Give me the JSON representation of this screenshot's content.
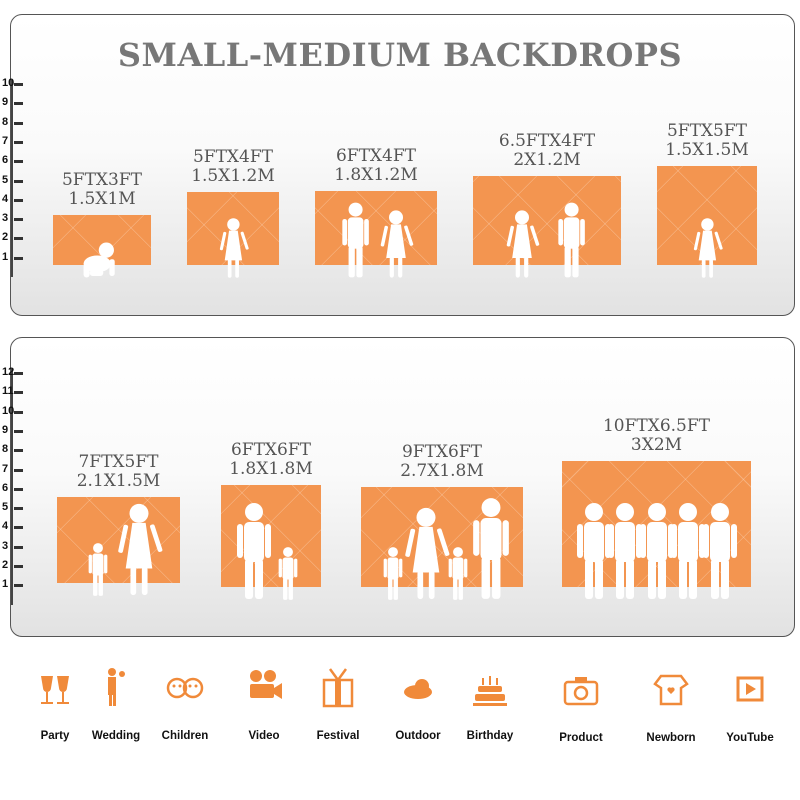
{
  "title": "SMALL-MEDIUM BACKDROPS",
  "accent_color": "#f39550",
  "top_panel": {
    "scale_ticks": [
      "10",
      "9",
      "8",
      "7",
      "6",
      "5",
      "4",
      "3",
      "2",
      "1"
    ],
    "backdrops": [
      {
        "ft": "5FTX3FT",
        "m": "1.5X1M",
        "silhouettes": [
          "crawling-baby"
        ]
      },
      {
        "ft": "5FTX4FT",
        "m": "1.5X1.2M",
        "silhouettes": [
          "girl"
        ]
      },
      {
        "ft": "6FTX4FT",
        "m": "1.8X1.2M",
        "silhouettes": [
          "boy",
          "girl"
        ]
      },
      {
        "ft": "6.5FTX4FT",
        "m": "2X1.2M",
        "silhouettes": [
          "girl",
          "boy"
        ]
      },
      {
        "ft": "5FTX5FT",
        "m": "1.5X1.5M",
        "silhouettes": [
          "girl"
        ]
      }
    ]
  },
  "bottom_panel": {
    "scale_ticks": [
      "12",
      "11",
      "10",
      "9",
      "8",
      "7",
      "6",
      "5",
      "4",
      "3",
      "2",
      "1"
    ],
    "backdrops": [
      {
        "ft": "7FTX5FT",
        "m": "2.1X1.5M",
        "silhouettes": [
          "child",
          "woman"
        ]
      },
      {
        "ft": "6FTX6FT",
        "m": "1.8X1.8M",
        "silhouettes": [
          "woman-holding-child",
          "child"
        ]
      },
      {
        "ft": "9FTX6FT",
        "m": "2.7X1.8M",
        "silhouettes": [
          "child",
          "woman",
          "child",
          "man"
        ]
      },
      {
        "ft": "10FTX6.5FT",
        "m": "3X2M",
        "silhouettes": [
          "adult",
          "adult",
          "adult",
          "adult",
          "adult"
        ]
      }
    ]
  },
  "uses": [
    {
      "label": "Party",
      "icon": "champagne-glasses-icon"
    },
    {
      "label": "Wedding",
      "icon": "wedding-couple-icon"
    },
    {
      "label": "Children",
      "icon": "children-faces-icon"
    },
    {
      "label": "Video",
      "icon": "movie-camera-icon"
    },
    {
      "label": "Festival",
      "icon": "gift-box-icon"
    },
    {
      "label": "Outdoor",
      "icon": "cloud-icon"
    },
    {
      "label": "Birthday",
      "icon": "birthday-cake-icon"
    },
    {
      "label": "Product",
      "icon": "camera-icon"
    },
    {
      "label": "Newborn",
      "icon": "baby-onesie-icon"
    },
    {
      "label": "YouTube",
      "icon": "play-button-icon"
    }
  ]
}
